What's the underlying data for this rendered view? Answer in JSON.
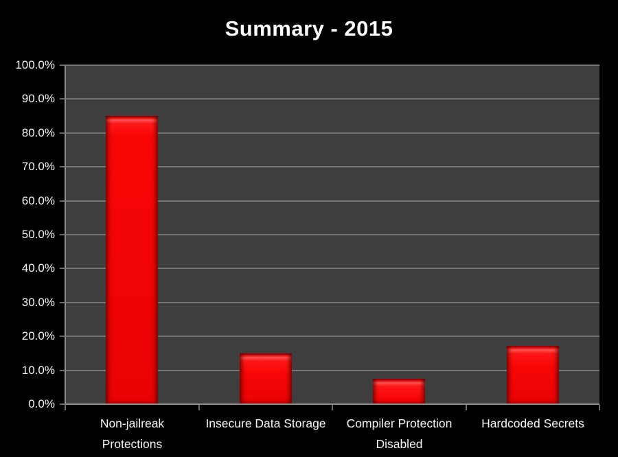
{
  "chart_data": {
    "type": "bar",
    "title": "Summary - 2015",
    "categories": [
      "Non-jailreak Protections",
      "Insecure Data Storage",
      "Compiler Protection Disabled",
      "Hardcoded Secrets"
    ],
    "values": [
      85.0,
      15.0,
      7.5,
      17.3
    ],
    "value_unit": "percent",
    "xlabel": "",
    "ylabel": "",
    "ylim": [
      0,
      100
    ],
    "ytick_step": 10,
    "ytick_labels": [
      "0.0%",
      "10.0%",
      "20.0%",
      "30.0%",
      "40.0%",
      "50.0%",
      "60.0%",
      "70.0%",
      "80.0%",
      "90.0%",
      "100.0%"
    ],
    "xtick_display_lines": [
      [
        "Non-jailreak",
        "Protections"
      ],
      [
        "Insecure Data Storage"
      ],
      [
        "Compiler Protection",
        "Disabled"
      ],
      [
        "Hardcoded Secrets"
      ]
    ],
    "grid": "on",
    "legend": "none",
    "colors": {
      "background": "#000000",
      "plot_background": "#3E3E3E",
      "gridline": "#757575",
      "axis_line": "#8F8F8F",
      "tick": "#6E6E6E",
      "bar": "#F90606",
      "bar_bevel_highlight": "#FF5252",
      "bar_bevel_dark": "#9D0000",
      "text": "#F5F5F5"
    }
  }
}
